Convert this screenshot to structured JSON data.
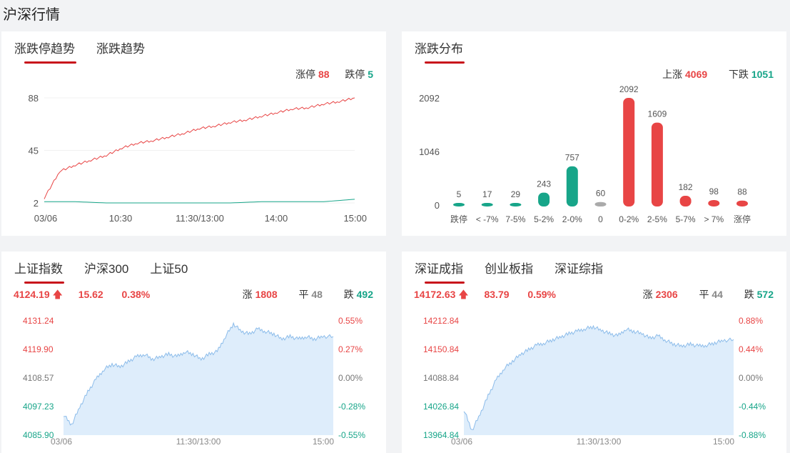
{
  "page_title": "沪深行情",
  "colors": {
    "up": "#e84545",
    "down": "#17a589",
    "flat": "#999999",
    "accent": "#c8121b"
  },
  "trend_panel": {
    "tabs": [
      {
        "label": "涨跌停趋势",
        "active": true
      },
      {
        "label": "涨跌趋势",
        "active": false
      }
    ],
    "limit_up_label": "涨停",
    "limit_up_value": "88",
    "limit_down_label": "跌停",
    "limit_down_value": "5",
    "y_ticks": [
      "88",
      "45",
      "2"
    ],
    "x_ticks": [
      "03/06",
      "10:30",
      "11:30/13:00",
      "14:00",
      "15:00"
    ]
  },
  "dist_panel": {
    "tabs": [
      {
        "label": "涨跌分布",
        "active": true
      }
    ],
    "up_label": "上涨",
    "up_value": "4069",
    "down_label": "下跌",
    "down_value": "1051",
    "y_ticks": [
      "2092",
      "1046",
      "0"
    ]
  },
  "sh_panel": {
    "tabs": [
      {
        "label": "上证指数",
        "active": true
      },
      {
        "label": "沪深300",
        "active": false
      },
      {
        "label": "上证50",
        "active": false
      }
    ],
    "price": "4124.19",
    "change": "15.62",
    "change_pct": "0.38%",
    "rise_label": "涨",
    "rise_value": "1808",
    "flat_label": "平",
    "flat_value": "48",
    "fall_label": "跌",
    "fall_value": "492",
    "left_ticks": [
      "4131.24",
      "4119.90",
      "4108.57",
      "4097.23",
      "4085.90"
    ],
    "right_ticks": [
      "0.55%",
      "0.27%",
      "0.00%",
      "-0.28%",
      "-0.55%"
    ],
    "x_ticks": [
      "03/06",
      "11:30/13:00",
      "15:00"
    ]
  },
  "sz_panel": {
    "tabs": [
      {
        "label": "深证成指",
        "active": true
      },
      {
        "label": "创业板指",
        "active": false
      },
      {
        "label": "深证综指",
        "active": false
      }
    ],
    "price": "14172.63",
    "change": "83.79",
    "change_pct": "0.59%",
    "rise_label": "涨",
    "rise_value": "2306",
    "flat_label": "平",
    "flat_value": "44",
    "fall_label": "跌",
    "fall_value": "572",
    "left_ticks": [
      "14212.84",
      "14150.84",
      "14088.84",
      "14026.84",
      "13964.84"
    ],
    "right_ticks": [
      "0.88%",
      "0.44%",
      "0.00%",
      "-0.44%",
      "-0.88%"
    ],
    "x_ticks": [
      "03/06",
      "11:30/13:00",
      "15:00"
    ]
  },
  "chart_data": [
    {
      "type": "line",
      "x_ticks": [
        "03/06",
        "10:30",
        "11:30/13:00",
        "14:00",
        "15:00"
      ],
      "ylim": [
        2,
        88
      ],
      "y_ticks": [
        2,
        45,
        88
      ],
      "series": [
        {
          "name": "涨停",
          "color": "#e84545",
          "x": [
            0,
            0.05,
            0.1,
            0.15,
            0.2,
            0.25,
            0.3,
            0.35,
            0.4,
            0.45,
            0.5,
            0.55,
            0.6,
            0.65,
            0.7,
            0.75,
            0.8,
            0.85,
            0.9,
            0.95,
            1.0
          ],
          "values": [
            6,
            28,
            33,
            37,
            41,
            47,
            51,
            53,
            56,
            59,
            63,
            65,
            68,
            70,
            73,
            76,
            79,
            80,
            83,
            85,
            88
          ]
        },
        {
          "name": "跌停",
          "color": "#17a589",
          "x": [
            0,
            0.1,
            0.2,
            0.3,
            0.4,
            0.5,
            0.6,
            0.7,
            0.8,
            0.9,
            1.0
          ],
          "values": [
            3,
            3,
            2,
            2,
            2,
            2,
            2,
            3,
            3,
            3,
            5
          ]
        }
      ]
    },
    {
      "type": "bar",
      "categories": [
        "跌停",
        "< -7%",
        "7-5%",
        "5-2%",
        "2-0%",
        "0",
        "0-2%",
        "2-5%",
        "5-7%",
        "> 7%",
        "涨停"
      ],
      "values": [
        5,
        17,
        29,
        243,
        757,
        60,
        2092,
        1609,
        182,
        98,
        88
      ],
      "colors": [
        "#17a589",
        "#17a589",
        "#17a589",
        "#17a589",
        "#17a589",
        "#aaaaaa",
        "#e84545",
        "#e84545",
        "#e84545",
        "#e84545",
        "#e84545"
      ],
      "ylim": [
        0,
        2092
      ],
      "y_ticks": [
        0,
        1046,
        2092
      ]
    },
    {
      "type": "area",
      "series_key": "sh",
      "ylim": [
        4085.9,
        4131.24
      ],
      "x": [
        0,
        0.03,
        0.06,
        0.09,
        0.12,
        0.15,
        0.18,
        0.21,
        0.24,
        0.27,
        0.3,
        0.33,
        0.36,
        0.39,
        0.42,
        0.45,
        0.48,
        0.51,
        0.54,
        0.57,
        0.6,
        0.63,
        0.66,
        0.69,
        0.72,
        0.75,
        0.78,
        0.81,
        0.84,
        0.87,
        0.9,
        0.93,
        0.96,
        1.0
      ],
      "values": [
        4094,
        4090,
        4097,
        4103,
        4108,
        4112,
        4114,
        4113,
        4115,
        4117,
        4118,
        4116,
        4117,
        4118,
        4117,
        4119,
        4118,
        4116,
        4118,
        4119,
        4125,
        4130,
        4127,
        4126,
        4128,
        4127,
        4126,
        4124,
        4125,
        4124,
        4125,
        4124,
        4125,
        4125
      ]
    },
    {
      "type": "area",
      "series_key": "sz",
      "ylim": [
        13964.84,
        14212.84
      ],
      "x": [
        0,
        0.03,
        0.06,
        0.09,
        0.12,
        0.15,
        0.18,
        0.21,
        0.24,
        0.27,
        0.3,
        0.33,
        0.36,
        0.39,
        0.42,
        0.45,
        0.48,
        0.51,
        0.54,
        0.57,
        0.6,
        0.63,
        0.66,
        0.69,
        0.72,
        0.75,
        0.78,
        0.81,
        0.84,
        0.87,
        0.9,
        0.93,
        0.96,
        1.0
      ],
      "values": [
        14020,
        13975,
        14010,
        14050,
        14085,
        14110,
        14125,
        14140,
        14150,
        14160,
        14165,
        14172,
        14178,
        14185,
        14190,
        14196,
        14200,
        14192,
        14185,
        14180,
        14195,
        14190,
        14185,
        14175,
        14180,
        14170,
        14162,
        14158,
        14162,
        14158,
        14160,
        14165,
        14170,
        14172
      ]
    }
  ]
}
